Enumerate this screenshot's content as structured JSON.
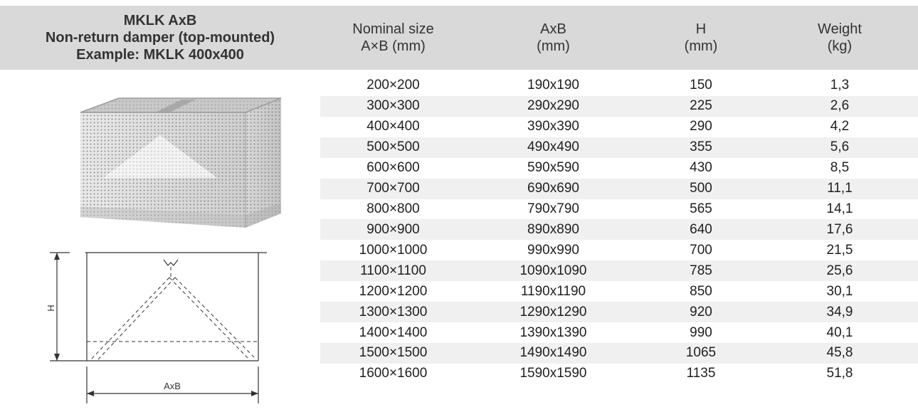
{
  "header": {
    "product_title_lines": [
      "MKLK AxB",
      "Non-return damper (top-mounted)",
      "Example: MKLK 400x400"
    ],
    "columns": [
      [
        "Nominal size",
        "A×B (mm)"
      ],
      [
        "AxB",
        "(mm)"
      ],
      [
        "H",
        "(mm)"
      ],
      [
        "Weight",
        "(kg)"
      ]
    ]
  },
  "rows": [
    {
      "nominal": "200×200",
      "axb": "190x190",
      "h": "150",
      "weight": "1,3"
    },
    {
      "nominal": "300×300",
      "axb": "290x290",
      "h": "225",
      "weight": "2,6"
    },
    {
      "nominal": "400×400",
      "axb": "390x390",
      "h": "290",
      "weight": "4,2"
    },
    {
      "nominal": "500×500",
      "axb": "490x490",
      "h": "355",
      "weight": "5,6"
    },
    {
      "nominal": "600×600",
      "axb": "590x590",
      "h": "430",
      "weight": "8,5"
    },
    {
      "nominal": "700×700",
      "axb": "690x690",
      "h": "500",
      "weight": "11,1"
    },
    {
      "nominal": "800×800",
      "axb": "790x790",
      "h": "565",
      "weight": "14,1"
    },
    {
      "nominal": "900×900",
      "axb": "890x890",
      "h": "640",
      "weight": "17,6"
    },
    {
      "nominal": "1000×1000",
      "axb": "990x990",
      "h": "700",
      "weight": "21,5"
    },
    {
      "nominal": "1100×1100",
      "axb": "1090x1090",
      "h": "785",
      "weight": "25,6"
    },
    {
      "nominal": "1200×1200",
      "axb": "1190x1190",
      "h": "850",
      "weight": "30,1"
    },
    {
      "nominal": "1300×1300",
      "axb": "1290x1290",
      "h": "920",
      "weight": "34,9"
    },
    {
      "nominal": "1400×1400",
      "axb": "1390x1390",
      "h": "990",
      "weight": "40,1"
    },
    {
      "nominal": "1500×1500",
      "axb": "1490x1490",
      "h": "1065",
      "weight": "45,8"
    },
    {
      "nominal": "1600×1600",
      "axb": "1590x1590",
      "h": "1135",
      "weight": "51,8"
    }
  ],
  "drawing": {
    "height_label": "H",
    "width_label": "AxB"
  },
  "colors": {
    "header_bg": "#d9d9d9",
    "stripe_bg": "#f0f0f0",
    "text": "#1f1f1f"
  }
}
